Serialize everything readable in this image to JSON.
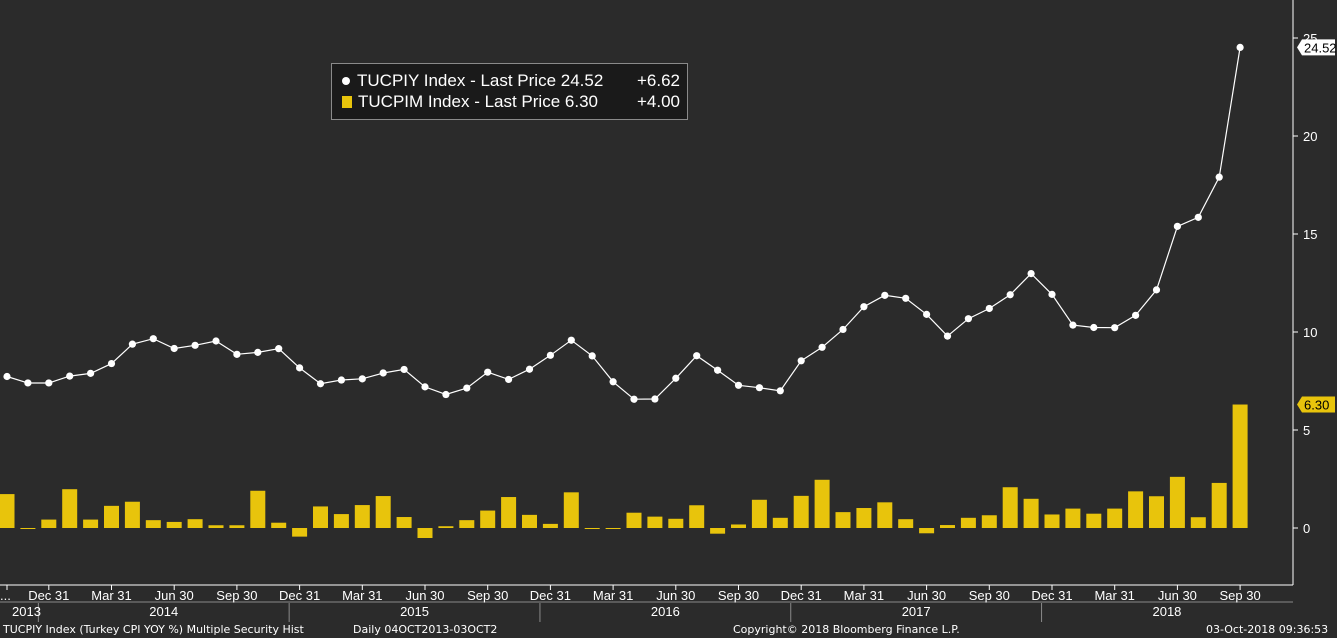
{
  "legend": {
    "series1_text": "TUCPIY Index - Last Price 24.52",
    "series1_change": "+6.62",
    "series2_text": "TUCPIM Index - Last Price 6.30",
    "series2_change": "+4.00"
  },
  "footer": {
    "security": "TUCPIY Index (Turkey CPI YOY %) Multiple Security Hist",
    "range": "Daily 04OCT2013-03OCT2",
    "copyright": "Copyright© 2018 Bloomberg Finance L.P.",
    "timestamp": "03-Oct-2018 09:36:53"
  },
  "chart_data": {
    "type": "line+bar",
    "ylim": [
      -2.9,
      26
    ],
    "yticks": [
      "0",
      "5",
      "10",
      "15",
      "20",
      "25"
    ],
    "ytick_values": [
      0,
      5,
      10,
      15,
      20,
      25
    ],
    "x_quarter_labels": [
      "...",
      "Dec 31",
      "Mar 31",
      "Jun 30",
      "Sep 30",
      "Dec 31",
      "Mar 31",
      "Jun 30",
      "Sep 30",
      "Dec 31",
      "Mar 31",
      "Jun 30",
      "Sep 30",
      "Dec 31",
      "Mar 31",
      "Jun 30",
      "Sep 30",
      "Dec 31",
      "Mar 31",
      "Jun 30",
      "Sep 30"
    ],
    "x_quarter_index": [
      0,
      2,
      5,
      8,
      11,
      14,
      17,
      20,
      23,
      26,
      29,
      32,
      35,
      38,
      41,
      44,
      47,
      50,
      53,
      56,
      59
    ],
    "x_year_labels": [
      "2013",
      "2014",
      "2015",
      "2016",
      "2017",
      "2018"
    ],
    "x_year_index": [
      0.5,
      7.5,
      19.5,
      31.5,
      43.5,
      55.5
    ],
    "x_year_separators": [
      1.5,
      13.5,
      25.5,
      37.5,
      49.5
    ],
    "series": [
      {
        "name": "TUCPIY Index",
        "type": "line",
        "color": "#ffffff",
        "last_label": "24.52",
        "values": [
          7.73,
          7.4,
          7.4,
          7.75,
          7.89,
          8.39,
          9.38,
          9.66,
          9.16,
          9.32,
          9.54,
          8.86,
          8.96,
          9.15,
          8.17,
          7.36,
          7.55,
          7.61,
          7.91,
          8.09,
          7.2,
          6.81,
          7.14,
          7.95,
          7.58,
          8.1,
          8.81,
          9.58,
          8.78,
          7.46,
          6.57,
          6.58,
          7.64,
          8.79,
          8.05,
          7.28,
          7.16,
          7.0,
          8.53,
          9.22,
          10.13,
          11.29,
          11.87,
          11.72,
          10.9,
          9.79,
          10.68,
          11.2,
          11.9,
          12.98,
          11.92,
          10.35,
          10.23,
          10.22,
          10.85,
          12.15,
          15.39,
          15.85,
          17.9,
          24.52
        ]
      },
      {
        "name": "TUCPIM Index",
        "type": "bar",
        "color": "#e8c40c",
        "last_label": "6.30",
        "values": [
          1.73,
          -0.01,
          0.43,
          1.98,
          0.43,
          1.13,
          1.34,
          0.4,
          0.31,
          0.45,
          0.14,
          0.14,
          1.9,
          0.27,
          -0.44,
          1.1,
          0.71,
          1.17,
          1.63,
          0.56,
          -0.51,
          0.09,
          0.4,
          0.89,
          1.58,
          0.67,
          0.21,
          1.82,
          -0.02,
          -0.02,
          0.78,
          0.58,
          0.47,
          1.16,
          -0.29,
          0.18,
          1.44,
          0.52,
          1.64,
          2.46,
          0.81,
          1.02,
          1.31,
          0.45,
          -0.27,
          0.15,
          0.52,
          0.65,
          2.08,
          1.49,
          0.69,
          0.99,
          0.73,
          0.99,
          1.87,
          1.62,
          2.61,
          0.55,
          2.3,
          6.3
        ]
      }
    ]
  }
}
